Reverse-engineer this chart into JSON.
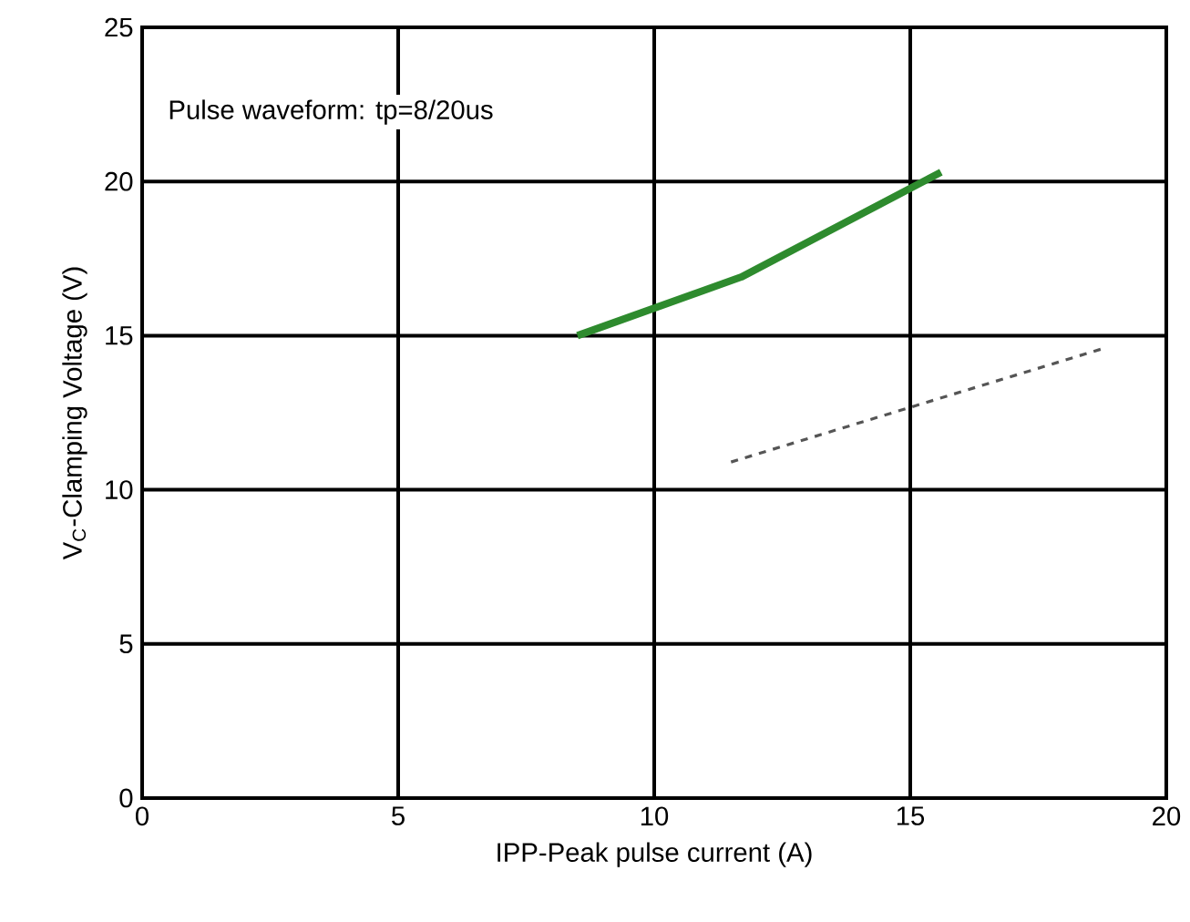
{
  "chart_data": {
    "type": "line",
    "xlabel": "IPP-Peak pulse current (A)",
    "ylabel": "V$_{C}$-Clamping Voltage (V)",
    "annotations": [
      "Pulse waveform: tp=8/20us"
    ],
    "series": [
      {
        "color": "#2e8b2e",
        "line_style": "solid",
        "x": [
          8.5,
          11.7,
          15.6
        ],
        "values": [
          15,
          16.9,
          20.3
        ]
      },
      {
        "color": "#555555",
        "line_style": "dashed",
        "x": [
          11.5,
          18.8
        ],
        "values": [
          10.9,
          14.6
        ]
      }
    ],
    "xlim": [
      0,
      20
    ],
    "ylim": [
      0,
      25
    ],
    "xticks": [
      0,
      5,
      10,
      15,
      20
    ],
    "yticks": [
      0,
      5,
      10,
      15,
      20,
      25
    ],
    "grid": true,
    "marker": "none"
  }
}
